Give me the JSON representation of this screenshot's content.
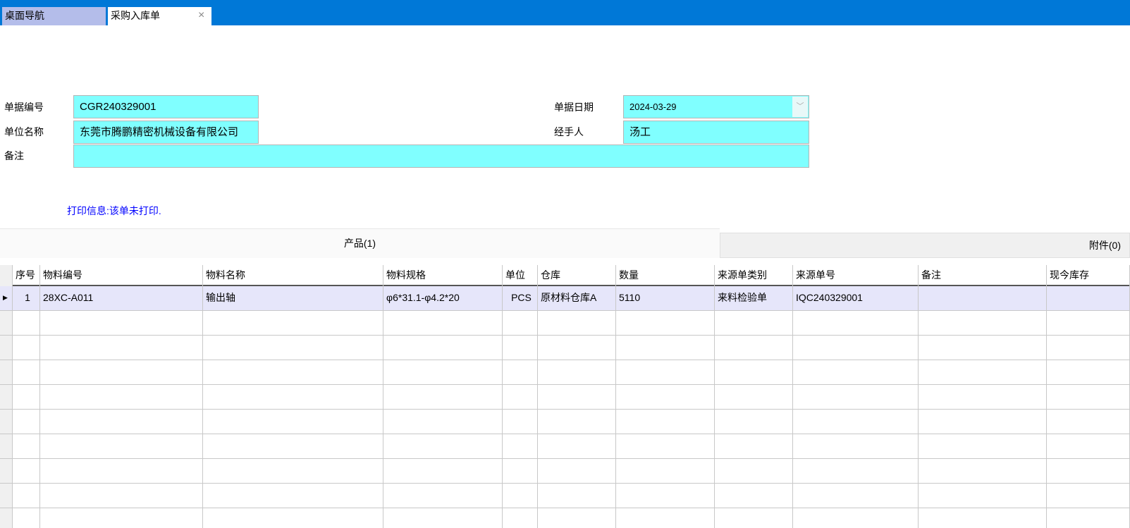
{
  "tabs": [
    {
      "label": "桌面导航"
    },
    {
      "label": "采购入库单",
      "close": "×"
    }
  ],
  "form": {
    "doc_no_label": "单据编号",
    "doc_no": "CGR240329001",
    "company_label": "单位名称",
    "company": "东莞市腾鹏精密机械设备有限公司",
    "remark_label": "备注",
    "remark": "",
    "date_label": "单据日期",
    "date": "2024-03-29",
    "handler_label": "经手人",
    "handler": "汤工"
  },
  "print_info": "打印信息:该单未打印.",
  "panel_tabs": {
    "products": "产品(1)",
    "attachments": "附件(0)"
  },
  "grid": {
    "columns": [
      "序号",
      "物料编号",
      "物料名称",
      "物料规格",
      "单位",
      "仓库",
      "数量",
      "来源单类别",
      "来源单号",
      "备注",
      "现今库存"
    ],
    "rows": [
      [
        "1",
        "28XC-A011",
        "输出轴",
        "φ6*31.1-φ4.2*20",
        "PCS",
        "原材料仓库A",
        "5110",
        "来料检验单",
        "IQC240329001",
        "",
        ""
      ]
    ]
  },
  "colors": {
    "title_bar": "#0078d7",
    "field_bg": "#80ffff",
    "selected_row": "#e6e6fa",
    "print_info": "#0000ff"
  }
}
